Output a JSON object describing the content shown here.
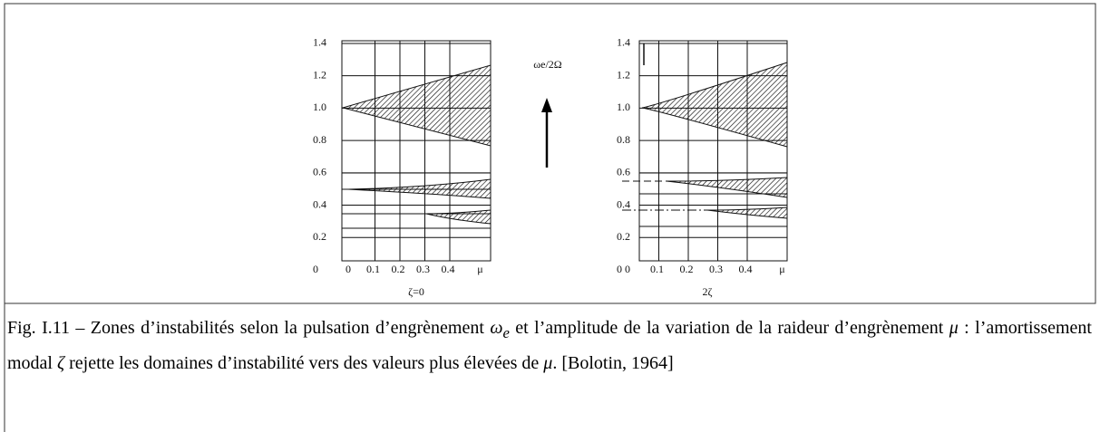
{
  "figure": {
    "panels": [
      {
        "yticks": [
          {
            "value": 1.4,
            "label": "1.4"
          },
          {
            "value": 1.2,
            "label": "1.2"
          },
          {
            "value": 1,
            "label": "1.0"
          },
          0.8,
          0.6,
          0.4,
          0.2,
          0
        ],
        "xticks": [
          0,
          0.1,
          0.2,
          0.3,
          0.4
        ],
        "xlabel": "μ",
        "label": "ζ=0"
      },
      {
        "yticks": [
          {
            "value": 1.4,
            "label": "1.4"
          },
          {
            "value": 1.2,
            "label": "1.2"
          },
          {
            "value": 1,
            "label": "1.0"
          },
          0.8,
          0.6,
          0.4,
          0.2,
          0
        ],
        "xticks": [
          0,
          0.1,
          0.2,
          0.3,
          0.4
        ],
        "xlabel": "μ",
        "label": "2ζ"
      }
    ],
    "arrow_label": "ωe/2Ω"
  },
  "caption": [
    "Fig. I.11 – Zones d’instabilités selon la pulsation d’engrènement ",
    "ω",
    "e",
    " et l’amplitude de la variation de la raideur d’engrènement ",
    "μ",
    " : l’amortissement modal ",
    "ζ",
    " rejette les domaines d’instabilité vers des valeurs plus élevées de ",
    "μ",
    ". [Bolotin, 1964]"
  ]
}
